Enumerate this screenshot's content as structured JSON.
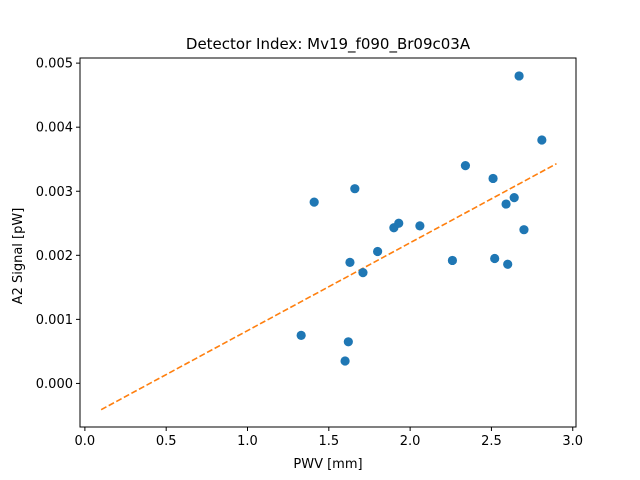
{
  "chart_data": {
    "type": "scatter",
    "title": "Detector Index: Mv19_f090_Br09c03A",
    "xlabel": "PWV [mm]",
    "ylabel": "A2 Signal [pW]",
    "xlim": [
      -0.03,
      3.02
    ],
    "ylim": [
      -0.00068,
      0.00508
    ],
    "xticks": [
      0.0,
      0.5,
      1.0,
      1.5,
      2.0,
      2.5,
      3.0
    ],
    "xtick_labels": [
      "0.0",
      "0.5",
      "1.0",
      "1.5",
      "2.0",
      "2.5",
      "3.0"
    ],
    "yticks": [
      0.0,
      0.001,
      0.002,
      0.003,
      0.004,
      0.005
    ],
    "ytick_labels": [
      "0.000",
      "0.001",
      "0.002",
      "0.003",
      "0.004",
      "0.005"
    ],
    "series": [
      {
        "name": "measurements",
        "kind": "scatter",
        "color": "#1f77b4",
        "x": [
          1.33,
          1.41,
          1.6,
          1.62,
          1.63,
          1.66,
          1.71,
          1.8,
          1.9,
          1.93,
          2.06,
          2.26,
          2.34,
          2.51,
          2.52,
          2.59,
          2.6,
          2.64,
          2.67,
          2.7,
          2.81
        ],
        "y": [
          0.00075,
          0.00283,
          0.00035,
          0.00065,
          0.00189,
          0.00304,
          0.00173,
          0.00206,
          0.00243,
          0.0025,
          0.00246,
          0.00192,
          0.0034,
          0.0032,
          0.00195,
          0.0028,
          0.00186,
          0.0029,
          0.0048,
          0.0024,
          0.0038
        ]
      },
      {
        "name": "fit",
        "kind": "line",
        "style": "dashed",
        "color": "#ff7f0e",
        "x": [
          0.1,
          2.9
        ],
        "y": [
          -0.00041,
          0.00343
        ]
      }
    ]
  }
}
